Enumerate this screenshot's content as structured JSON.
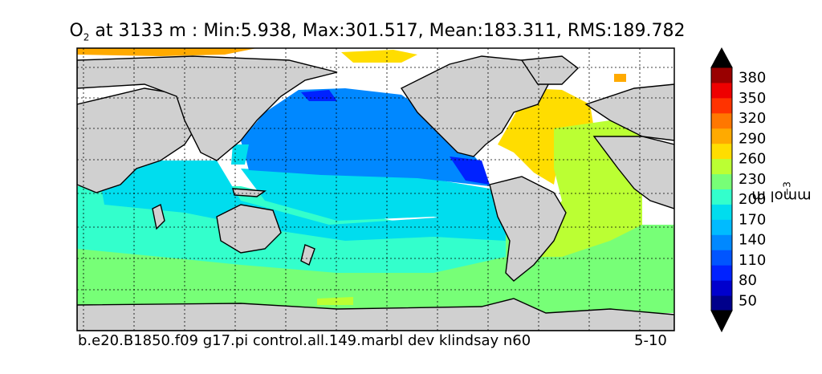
{
  "title": {
    "variable": "O",
    "subscript": "2",
    "rest": " at 3133 m : Min:5.938, Max:301.517, Mean:183.311, RMS:189.782"
  },
  "footer": {
    "case_name": "b.e20.B1850.f09 g17.pi control.all.149.marbl dev klindsay n60",
    "years": "5-10"
  },
  "colorbar": {
    "label": "mmol m",
    "label_exponent": "−3",
    "tick_labels": [
      "50",
      "80",
      "110",
      "140",
      "170",
      "200",
      "230",
      "260",
      "290",
      "320",
      "350",
      "380"
    ],
    "levels": [
      35,
      50,
      65,
      80,
      95,
      110,
      125,
      140,
      155,
      170,
      185,
      200,
      215,
      230,
      245,
      260,
      275,
      290,
      305,
      320,
      335,
      350,
      365,
      380,
      395
    ],
    "colors": [
      "#00008b",
      "#0000cd",
      "#0022ff",
      "#0055ff",
      "#0088ff",
      "#00bbff",
      "#00ddee",
      "#33ffcc",
      "#77ff77",
      "#bbff33",
      "#ffdd00",
      "#ffaa00",
      "#ff7700",
      "#ff3300",
      "#ee0000",
      "#990000"
    ],
    "extend": "both"
  },
  "map": {
    "projection": "cylindrical",
    "gridlines": "dotted",
    "land_color": "#d0d0d0",
    "missing_color": "#ffffff"
  }
}
